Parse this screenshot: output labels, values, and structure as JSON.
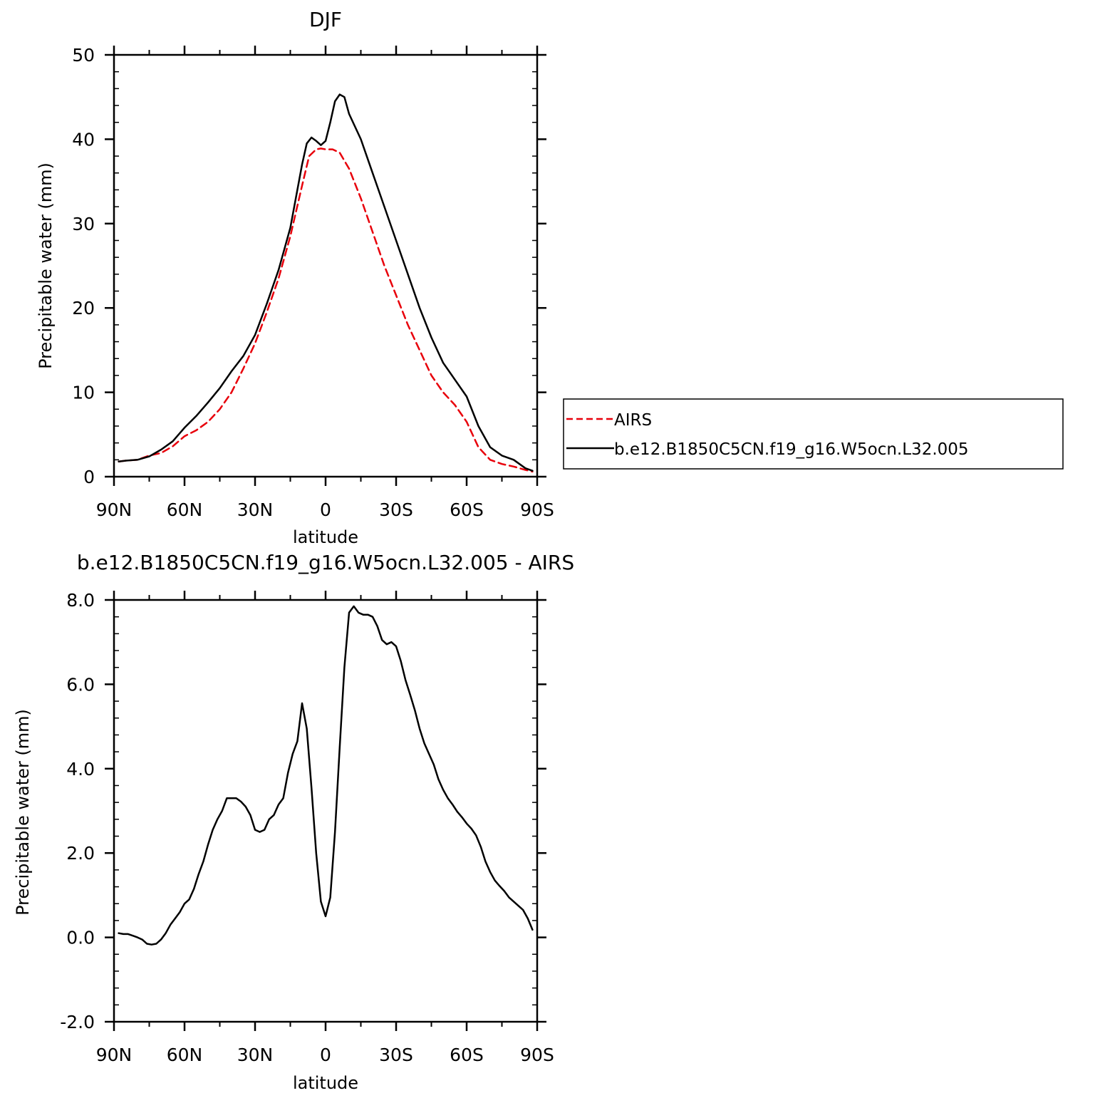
{
  "figure": {
    "colors": {
      "model": "#000000",
      "obs": "#e8000b"
    }
  },
  "chart_data": [
    {
      "type": "line",
      "title": "DJF",
      "xlabel": "latitude",
      "ylabel": "Precipitable water (mm)",
      "xlim": [
        -90,
        90
      ],
      "ylim": [
        0,
        50
      ],
      "xticks": [
        -90,
        -60,
        -30,
        0,
        30,
        60,
        90
      ],
      "xticklabels": [
        "90N",
        "60N",
        "30N",
        "0",
        "30S",
        "60S",
        "90S"
      ],
      "yticks": [
        0,
        10,
        20,
        30,
        40,
        50
      ],
      "yticklabels": [
        "0",
        "10",
        "20",
        "30",
        "40",
        "50"
      ],
      "grid": false,
      "legend": {
        "placement": "right",
        "entries": [
          "AIRS",
          "b.e12.B1850C5CN.f19_g16.W5ocn.L32.005"
        ]
      },
      "series": [
        {
          "name": "AIRS",
          "style": "dashed",
          "color": "#e8000b",
          "x": [
            -88,
            -85,
            -80,
            -75,
            -70,
            -65,
            -60,
            -55,
            -50,
            -45,
            -40,
            -35,
            -30,
            -25,
            -20,
            -15,
            -10,
            -7,
            -4,
            -2,
            0,
            3,
            6,
            10,
            15,
            20,
            25,
            30,
            35,
            40,
            45,
            50,
            55,
            60,
            65,
            70,
            75,
            80,
            85,
            88
          ],
          "y": [
            1.8,
            1.9,
            2.0,
            2.5,
            2.8,
            3.6,
            4.8,
            5.5,
            6.5,
            8.0,
            10.0,
            12.8,
            15.8,
            19.5,
            23.5,
            28.5,
            34.5,
            38.0,
            38.8,
            38.9,
            38.8,
            38.8,
            38.4,
            36.5,
            33.0,
            29.0,
            25.0,
            21.5,
            18.0,
            15.0,
            12.0,
            10.0,
            8.5,
            6.5,
            3.5,
            2.0,
            1.5,
            1.2,
            0.8,
            0.6
          ]
        },
        {
          "name": "b.e12.B1850C5CN.f19_g16.W5ocn.L32.005",
          "style": "solid",
          "color": "#000000",
          "x": [
            -88,
            -85,
            -80,
            -75,
            -70,
            -65,
            -60,
            -55,
            -50,
            -45,
            -40,
            -35,
            -30,
            -25,
            -20,
            -15,
            -10,
            -8,
            -6,
            -4,
            -2,
            0,
            2,
            4,
            6,
            8,
            10,
            15,
            20,
            25,
            30,
            35,
            40,
            45,
            50,
            55,
            60,
            65,
            70,
            75,
            80,
            85,
            88
          ],
          "y": [
            1.8,
            1.9,
            2.0,
            2.4,
            3.2,
            4.2,
            5.8,
            7.2,
            8.8,
            10.5,
            12.5,
            14.3,
            16.8,
            20.5,
            24.5,
            29.5,
            37.0,
            39.5,
            40.2,
            39.8,
            39.3,
            39.8,
            42.0,
            44.5,
            45.3,
            45.0,
            43.0,
            40.0,
            36.0,
            32.0,
            28.0,
            24.0,
            20.0,
            16.5,
            13.5,
            11.5,
            9.5,
            6.0,
            3.5,
            2.5,
            2.0,
            1.0,
            0.7
          ]
        }
      ]
    },
    {
      "type": "line",
      "title": "b.e12.B1850C5CN.f19_g16.W5ocn.L32.005 - AIRS",
      "xlabel": "latitude",
      "ylabel": "Precipitable water (mm)",
      "xlim": [
        -90,
        90
      ],
      "ylim": [
        -2,
        8
      ],
      "xticks": [
        -90,
        -60,
        -30,
        0,
        30,
        60,
        90
      ],
      "xticklabels": [
        "90N",
        "60N",
        "30N",
        "0",
        "30S",
        "60S",
        "90S"
      ],
      "yticks": [
        -2,
        0,
        2,
        4,
        6,
        8
      ],
      "yticklabels": [
        "-2.0",
        "0.0",
        "2.0",
        "4.0",
        "6.0",
        "8.0"
      ],
      "grid": false,
      "series": [
        {
          "style": "solid",
          "color": "#000000",
          "x": [
            -88,
            -86,
            -84,
            -82,
            -80,
            -78,
            -76,
            -74,
            -72,
            -70,
            -68,
            -66,
            -64,
            -62,
            -60,
            -58,
            -56,
            -54,
            -52,
            -50,
            -48,
            -46,
            -44,
            -42,
            -40,
            -38,
            -36,
            -34,
            -32,
            -30,
            -28,
            -26,
            -24,
            -22,
            -20,
            -18,
            -16,
            -14,
            -12,
            -10,
            -8,
            -6,
            -4,
            -2,
            0,
            2,
            4,
            6,
            8,
            10,
            12,
            14,
            16,
            18,
            20,
            22,
            24,
            26,
            28,
            30,
            32,
            34,
            36,
            38,
            40,
            42,
            44,
            46,
            48,
            50,
            52,
            54,
            56,
            58,
            60,
            62,
            64,
            66,
            68,
            70,
            72,
            74,
            76,
            78,
            80,
            82,
            84,
            86,
            88
          ],
          "y": [
            0.1,
            0.08,
            0.08,
            0.04,
            0.0,
            -0.05,
            -0.15,
            -0.17,
            -0.15,
            -0.05,
            0.1,
            0.3,
            0.45,
            0.6,
            0.8,
            0.9,
            1.15,
            1.5,
            1.8,
            2.2,
            2.55,
            2.8,
            3.0,
            3.3,
            3.3,
            3.3,
            3.22,
            3.1,
            2.9,
            2.55,
            2.5,
            2.55,
            2.8,
            2.9,
            3.15,
            3.3,
            3.9,
            4.35,
            4.65,
            5.55,
            4.95,
            3.55,
            2.0,
            0.85,
            0.5,
            0.95,
            2.5,
            4.5,
            6.4,
            7.7,
            7.85,
            7.7,
            7.65,
            7.65,
            7.6,
            7.38,
            7.05,
            6.95,
            7.0,
            6.9,
            6.55,
            6.1,
            5.75,
            5.38,
            4.95,
            4.6,
            4.35,
            4.1,
            3.75,
            3.5,
            3.3,
            3.15,
            2.98,
            2.85,
            2.7,
            2.58,
            2.42,
            2.15,
            1.8,
            1.55,
            1.35,
            1.22,
            1.1,
            0.95,
            0.85,
            0.75,
            0.65,
            0.45,
            0.18
          ]
        }
      ]
    }
  ]
}
